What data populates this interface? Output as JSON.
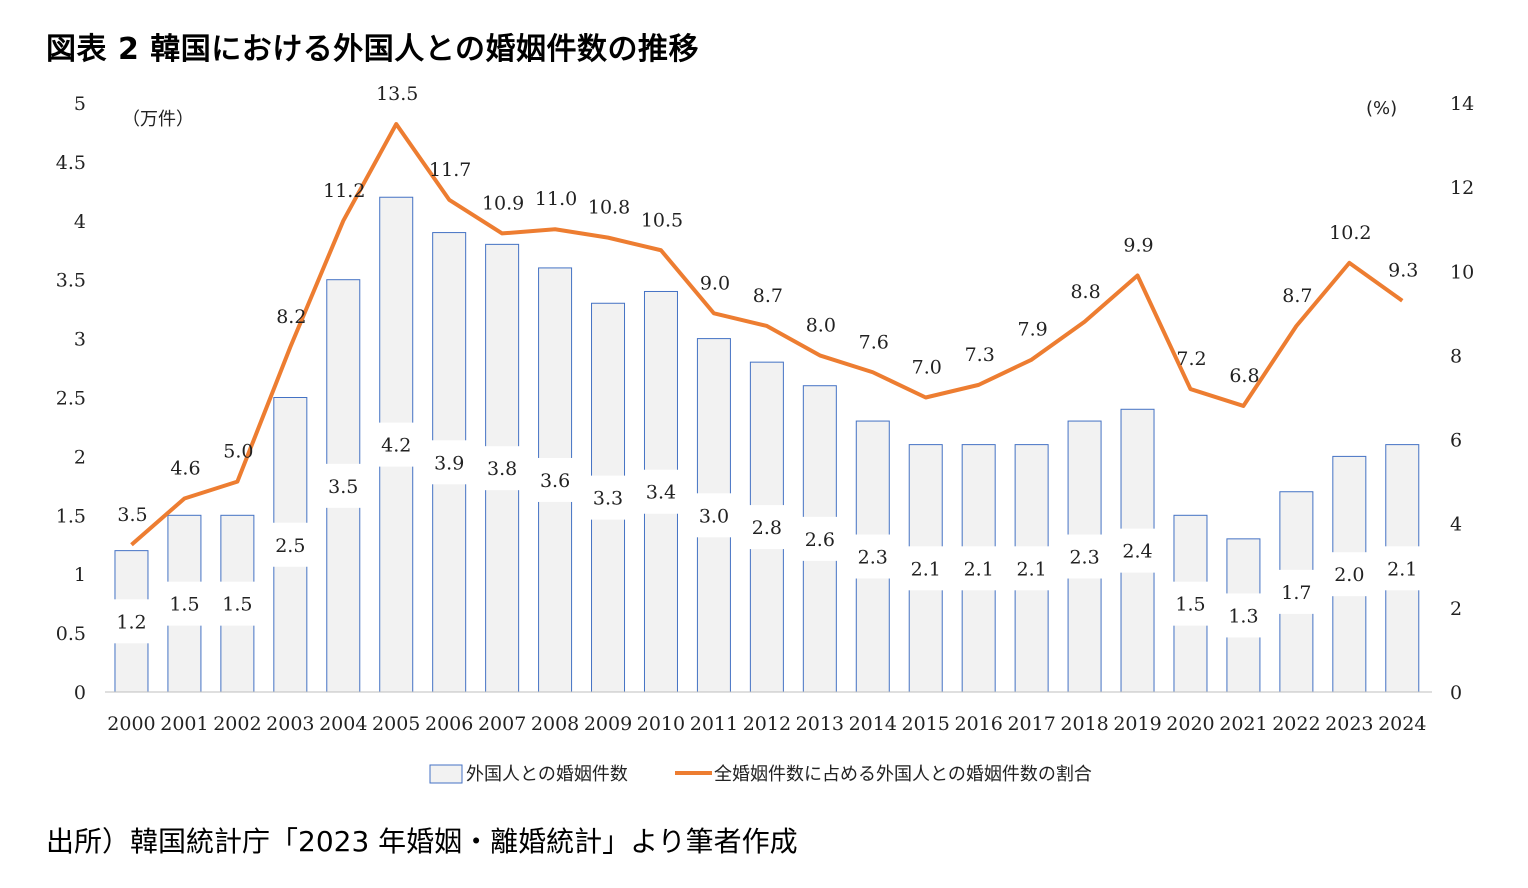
{
  "title": "図表 2 韓国における外国人との婚姻件数の推移",
  "source": "出所）韓国統計庁「2023 年婚姻・離婚統計」より筆者作成",
  "chart_data": {
    "type": "bar",
    "categories": [
      "2000",
      "2001",
      "2002",
      "2003",
      "2004",
      "2005",
      "2006",
      "2007",
      "2008",
      "2009",
      "2010",
      "2011",
      "2012",
      "2013",
      "2014",
      "2015",
      "2016",
      "2017",
      "2018",
      "2019",
      "2020",
      "2021",
      "2022",
      "2023",
      "2024"
    ],
    "series": [
      {
        "name": "外国人との婚姻件数",
        "type": "bar",
        "axis": "left",
        "color": "#f2f2f2",
        "edge_color": "#4472c4",
        "values": [
          1.2,
          1.5,
          1.5,
          2.5,
          3.5,
          4.2,
          3.9,
          3.8,
          3.6,
          3.3,
          3.4,
          3.0,
          2.8,
          2.6,
          2.3,
          2.1,
          2.1,
          2.1,
          2.3,
          2.4,
          1.5,
          1.3,
          1.7,
          2.0,
          2.1
        ]
      },
      {
        "name": "全婚姻件数に占める外国人との婚姻件数の割合",
        "type": "line",
        "axis": "right",
        "color": "#ed7d31",
        "values": [
          3.5,
          4.6,
          5.0,
          8.2,
          11.2,
          13.5,
          11.7,
          10.9,
          11.0,
          10.8,
          10.5,
          9.0,
          8.7,
          8.0,
          7.6,
          7.0,
          7.3,
          7.9,
          8.8,
          9.9,
          7.2,
          6.8,
          8.7,
          10.2,
          9.3
        ]
      }
    ],
    "left_axis": {
      "unit": "（万件）",
      "ylim": [
        0,
        5
      ],
      "ticks": [
        "0",
        "0.5",
        "1",
        "1.5",
        "2",
        "2.5",
        "3",
        "3.5",
        "4",
        "4.5",
        "5"
      ]
    },
    "right_axis": {
      "unit": "(%)",
      "ylim": [
        0,
        14
      ],
      "ticks": [
        "0",
        "2",
        "4",
        "6",
        "8",
        "10",
        "12",
        "14"
      ]
    },
    "grid": false,
    "legend_position": "bottom"
  }
}
